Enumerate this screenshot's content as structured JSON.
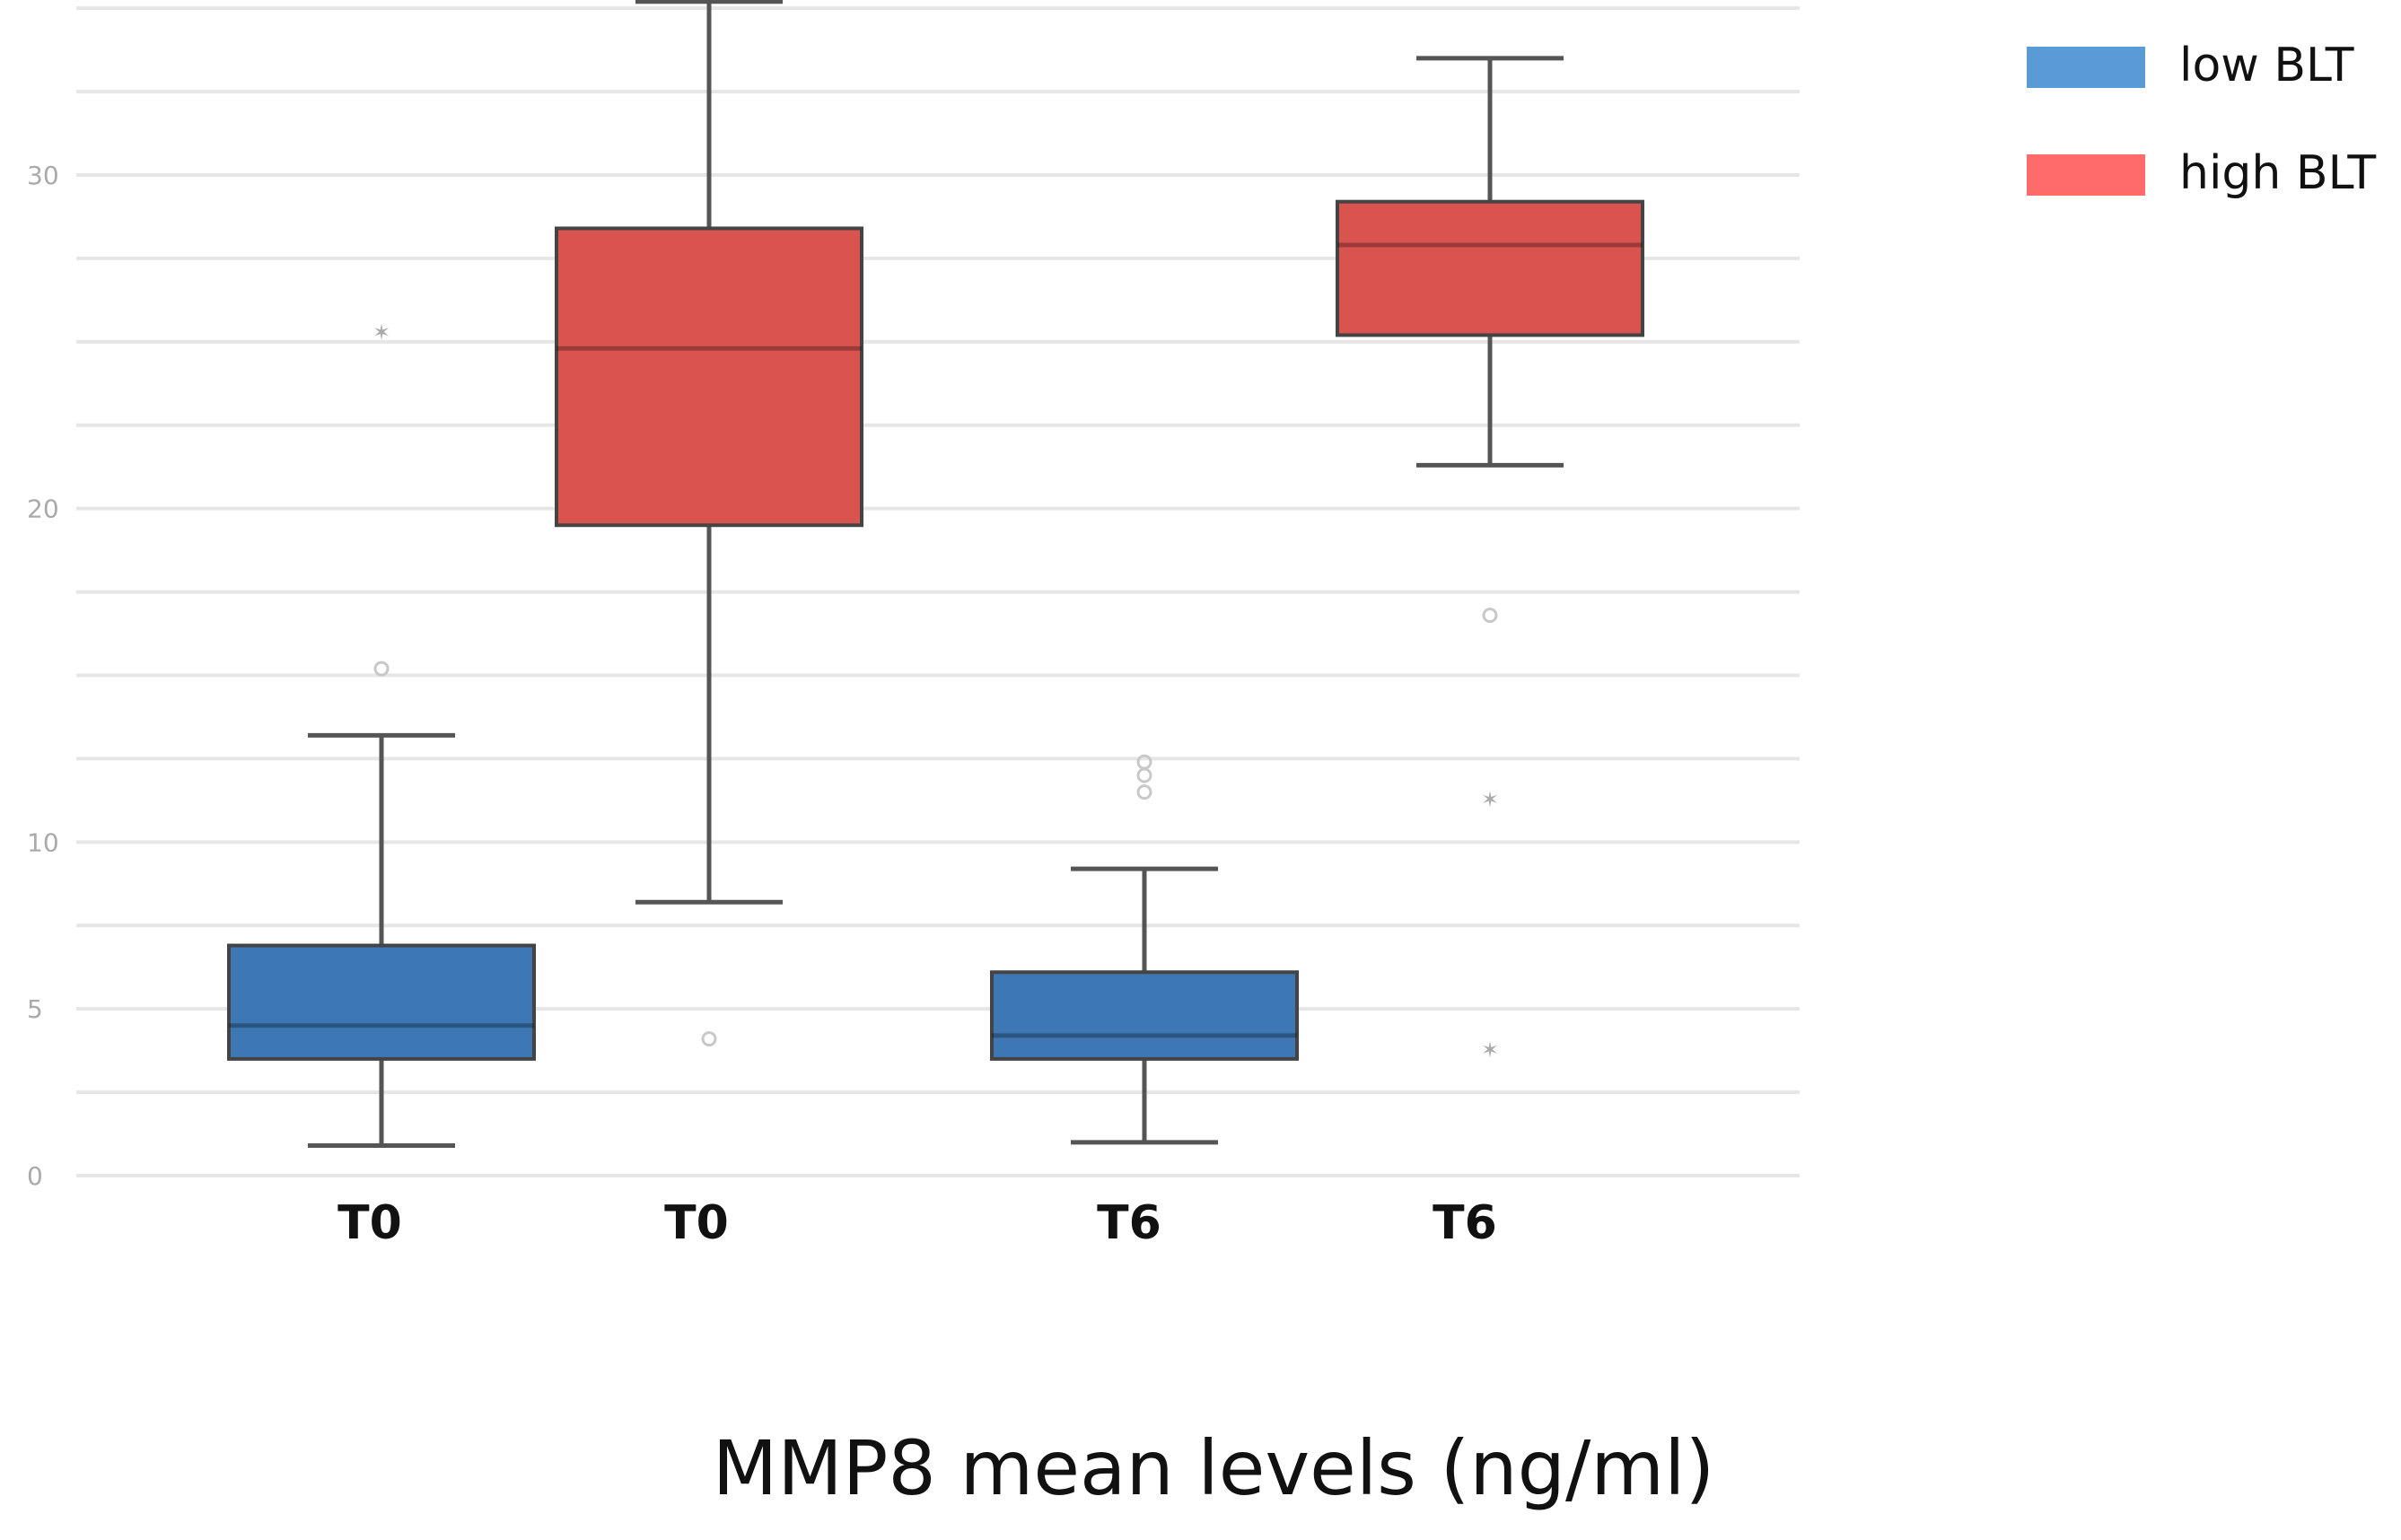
{
  "chart_data": {
    "type": "box",
    "title": "",
    "xlabel": "MMP8 mean levels (ng/ml)",
    "ylabel": "",
    "ylim": [
      0,
      35
    ],
    "yticks": [
      0,
      5,
      10,
      20,
      30
    ],
    "categories": [
      "T0",
      "T0",
      "T6",
      "T6"
    ],
    "legend": {
      "position": "top-right",
      "entries": [
        {
          "name": "low BLT",
          "color": "#5b9bd5"
        },
        {
          "name": "high BLT",
          "color": "#ff6b6b"
        }
      ]
    },
    "series": [
      {
        "name": "low BLT",
        "color": "#3e78b4",
        "boxes": [
          {
            "category": "T0",
            "whisker_low": 0.9,
            "q1": 3.5,
            "median": 4.5,
            "q3": 6.9,
            "whisker_high": 13.2,
            "outliers": [
              {
                "value": 15.2,
                "marker": "circle"
              },
              {
                "value": 25.3,
                "marker": "star"
              }
            ]
          },
          {
            "category": "T6",
            "whisker_low": 1.0,
            "q1": 3.5,
            "median": 4.2,
            "q3": 6.1,
            "whisker_high": 9.2,
            "outliers": [
              {
                "value": 11.5,
                "marker": "circle"
              },
              {
                "value": 12.0,
                "marker": "circle"
              },
              {
                "value": 12.4,
                "marker": "circle"
              }
            ]
          }
        ]
      },
      {
        "name": "high BLT",
        "color": "#d9534f",
        "boxes": [
          {
            "category": "T0",
            "whisker_low": 8.2,
            "q1": 19.5,
            "median": 24.8,
            "q3": 28.4,
            "whisker_high": 35.2,
            "outliers": [
              {
                "value": 4.1,
                "marker": "circle"
              }
            ]
          },
          {
            "category": "T6",
            "whisker_low": 21.3,
            "q1": 25.2,
            "median": 27.9,
            "q3": 29.2,
            "whisker_high": 33.5,
            "outliers": [
              {
                "value": 16.8,
                "marker": "circle"
              },
              {
                "value": 11.3,
                "marker": "star"
              },
              {
                "value": 3.8,
                "marker": "star"
              }
            ]
          }
        ]
      }
    ]
  }
}
